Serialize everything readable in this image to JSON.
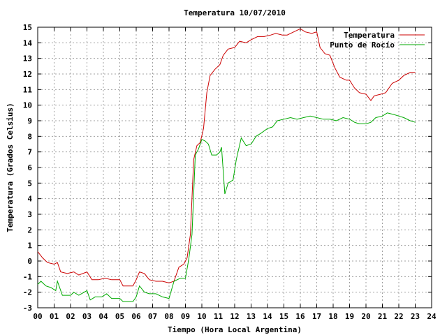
{
  "chart_data": {
    "type": "line",
    "title": "Temperatura 10/07/2010",
    "xlabel": "Tiempo (Hora Local Argentina)",
    "ylabel": "Temperatura (Grados Celsius)",
    "xlim": [
      0,
      24
    ],
    "ylim": [
      -3,
      15
    ],
    "x_ticks": [
      "00",
      "01",
      "02",
      "03",
      "04",
      "05",
      "06",
      "07",
      "08",
      "09",
      "10",
      "11",
      "12",
      "13",
      "14",
      "15",
      "16",
      "17",
      "18",
      "19",
      "20",
      "21",
      "22",
      "23",
      "24"
    ],
    "y_ticks": [
      -3,
      -2,
      -1,
      0,
      1,
      2,
      3,
      4,
      5,
      6,
      7,
      8,
      9,
      10,
      11,
      12,
      13,
      14,
      15
    ],
    "grid": true,
    "legend_position": "top-right",
    "series": [
      {
        "name": "Temperatura",
        "color": "#cc0000",
        "points": [
          [
            0.0,
            0.6
          ],
          [
            0.3,
            0.2
          ],
          [
            0.6,
            -0.1
          ],
          [
            1.0,
            -0.2
          ],
          [
            1.2,
            -0.1
          ],
          [
            1.4,
            -0.7
          ],
          [
            1.8,
            -0.8
          ],
          [
            2.2,
            -0.7
          ],
          [
            2.5,
            -0.9
          ],
          [
            3.0,
            -0.7
          ],
          [
            3.3,
            -1.2
          ],
          [
            3.7,
            -1.2
          ],
          [
            4.1,
            -1.1
          ],
          [
            4.5,
            -1.2
          ],
          [
            5.0,
            -1.2
          ],
          [
            5.2,
            -1.6
          ],
          [
            5.8,
            -1.6
          ],
          [
            6.0,
            -1.2
          ],
          [
            6.2,
            -0.7
          ],
          [
            6.5,
            -0.8
          ],
          [
            6.8,
            -1.2
          ],
          [
            7.2,
            -1.3
          ],
          [
            7.6,
            -1.3
          ],
          [
            8.0,
            -1.4
          ],
          [
            8.3,
            -1.3
          ],
          [
            8.6,
            -0.4
          ],
          [
            8.9,
            -0.2
          ],
          [
            9.1,
            0.2
          ],
          [
            9.3,
            1.7
          ],
          [
            9.5,
            6.5
          ],
          [
            9.7,
            7.4
          ],
          [
            9.9,
            7.6
          ],
          [
            10.1,
            8.5
          ],
          [
            10.3,
            10.8
          ],
          [
            10.5,
            11.9
          ],
          [
            10.8,
            12.3
          ],
          [
            11.1,
            12.6
          ],
          [
            11.3,
            13.2
          ],
          [
            11.6,
            13.6
          ],
          [
            12.0,
            13.7
          ],
          [
            12.3,
            14.1
          ],
          [
            12.7,
            14.0
          ],
          [
            13.0,
            14.2
          ],
          [
            13.4,
            14.4
          ],
          [
            13.8,
            14.4
          ],
          [
            14.2,
            14.5
          ],
          [
            14.5,
            14.6
          ],
          [
            14.9,
            14.5
          ],
          [
            15.2,
            14.5
          ],
          [
            15.6,
            14.7
          ],
          [
            16.0,
            14.9
          ],
          [
            16.3,
            14.7
          ],
          [
            16.7,
            14.6
          ],
          [
            17.0,
            14.7
          ],
          [
            17.2,
            13.7
          ],
          [
            17.5,
            13.3
          ],
          [
            17.8,
            13.2
          ],
          [
            18.1,
            12.4
          ],
          [
            18.4,
            11.8
          ],
          [
            18.8,
            11.6
          ],
          [
            19.0,
            11.6
          ],
          [
            19.3,
            11.1
          ],
          [
            19.6,
            10.8
          ],
          [
            20.0,
            10.7
          ],
          [
            20.3,
            10.3
          ],
          [
            20.5,
            10.6
          ],
          [
            20.9,
            10.7
          ],
          [
            21.2,
            10.8
          ],
          [
            21.6,
            11.4
          ],
          [
            22.0,
            11.6
          ],
          [
            22.3,
            11.9
          ],
          [
            22.7,
            12.1
          ],
          [
            23.0,
            12.1
          ]
        ]
      },
      {
        "name": "Punto de Rocío",
        "color": "#00aa00",
        "points": [
          [
            0.0,
            -1.5
          ],
          [
            0.2,
            -1.3
          ],
          [
            0.5,
            -1.6
          ],
          [
            0.8,
            -1.7
          ],
          [
            1.1,
            -1.9
          ],
          [
            1.2,
            -1.3
          ],
          [
            1.5,
            -2.2
          ],
          [
            2.0,
            -2.2
          ],
          [
            2.2,
            -2.0
          ],
          [
            2.5,
            -2.2
          ],
          [
            3.0,
            -1.9
          ],
          [
            3.2,
            -2.5
          ],
          [
            3.5,
            -2.3
          ],
          [
            3.9,
            -2.3
          ],
          [
            4.2,
            -2.1
          ],
          [
            4.5,
            -2.4
          ],
          [
            5.0,
            -2.4
          ],
          [
            5.2,
            -2.6
          ],
          [
            5.8,
            -2.6
          ],
          [
            6.0,
            -2.3
          ],
          [
            6.2,
            -1.6
          ],
          [
            6.5,
            -2.0
          ],
          [
            6.8,
            -2.1
          ],
          [
            7.2,
            -2.1
          ],
          [
            7.6,
            -2.3
          ],
          [
            8.0,
            -2.4
          ],
          [
            8.3,
            -1.3
          ],
          [
            8.7,
            -1.1
          ],
          [
            9.0,
            -1.1
          ],
          [
            9.2,
            0.1
          ],
          [
            9.4,
            1.7
          ],
          [
            9.6,
            6.8
          ],
          [
            9.8,
            7.2
          ],
          [
            10.0,
            7.8
          ],
          [
            10.2,
            7.7
          ],
          [
            10.4,
            7.5
          ],
          [
            10.6,
            6.8
          ],
          [
            10.9,
            6.8
          ],
          [
            11.1,
            7.0
          ],
          [
            11.2,
            7.3
          ],
          [
            11.4,
            4.3
          ],
          [
            11.6,
            5.0
          ],
          [
            11.9,
            5.2
          ],
          [
            12.1,
            6.5
          ],
          [
            12.4,
            7.9
          ],
          [
            12.7,
            7.4
          ],
          [
            13.0,
            7.5
          ],
          [
            13.3,
            8.0
          ],
          [
            13.6,
            8.2
          ],
          [
            14.0,
            8.5
          ],
          [
            14.3,
            8.6
          ],
          [
            14.6,
            9.0
          ],
          [
            15.0,
            9.1
          ],
          [
            15.4,
            9.2
          ],
          [
            15.8,
            9.1
          ],
          [
            16.2,
            9.2
          ],
          [
            16.6,
            9.3
          ],
          [
            17.0,
            9.2
          ],
          [
            17.4,
            9.1
          ],
          [
            17.8,
            9.1
          ],
          [
            18.2,
            9.0
          ],
          [
            18.6,
            9.2
          ],
          [
            19.0,
            9.1
          ],
          [
            19.3,
            8.9
          ],
          [
            19.6,
            8.8
          ],
          [
            20.0,
            8.8
          ],
          [
            20.3,
            8.9
          ],
          [
            20.6,
            9.2
          ],
          [
            21.0,
            9.3
          ],
          [
            21.3,
            9.5
          ],
          [
            21.7,
            9.4
          ],
          [
            22.0,
            9.3
          ],
          [
            22.3,
            9.2
          ],
          [
            22.7,
            9.0
          ],
          [
            23.0,
            8.9
          ]
        ]
      }
    ]
  }
}
